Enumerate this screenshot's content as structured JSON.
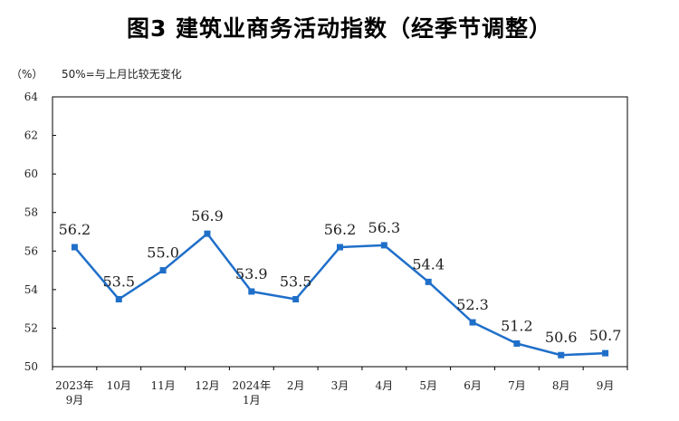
{
  "chart_data": {
    "type": "line",
    "title": "图3  建筑业商务活动指数（经季节调整）",
    "y_unit": "（%）",
    "note": "50%=与上月比较无变化",
    "categories": [
      [
        "2023年",
        "9月"
      ],
      [
        "10月"
      ],
      [
        "11月"
      ],
      [
        "12月"
      ],
      [
        "2024年",
        "1月"
      ],
      [
        "2月"
      ],
      [
        "3月"
      ],
      [
        "4月"
      ],
      [
        "5月"
      ],
      [
        "6月"
      ],
      [
        "7月"
      ],
      [
        "8月"
      ],
      [
        "9月"
      ]
    ],
    "series": [
      {
        "values": [
          56.2,
          53.5,
          55.0,
          56.9,
          53.9,
          53.5,
          56.2,
          56.3,
          54.4,
          52.3,
          51.2,
          50.6,
          50.7
        ],
        "labels": [
          "56.2",
          "53.5",
          "55.0",
          "56.9",
          "53.9",
          "53.5",
          "56.2",
          "56.3",
          "54.4",
          "52.3",
          "51.2",
          "50.6",
          "50.7"
        ],
        "color": "#1f6fc9"
      }
    ],
    "ylim": [
      50,
      64
    ],
    "yticks": [
      50,
      52,
      54,
      56,
      58,
      60,
      62,
      64
    ],
    "grid": false,
    "legend": "none"
  }
}
